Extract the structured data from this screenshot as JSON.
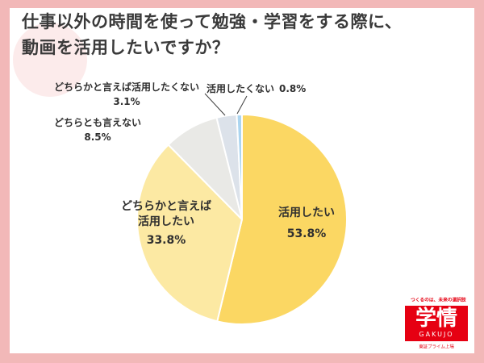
{
  "title": {
    "line1": "仕事以外の時間を使って勉強・学習をする際に、",
    "line2": "動画を活用したいですか？"
  },
  "chart_data": {
    "type": "pie",
    "title": "仕事以外の時間を使って勉強・学習をする際に、動画を活用したいですか？",
    "unit": "%",
    "start_angle_deg": 0,
    "direction": "clockwise",
    "legend_position": "none",
    "slices": [
      {
        "key": "use",
        "label": "活用したい",
        "value": 53.8,
        "pct": "53.8%",
        "color": "#FBD763"
      },
      {
        "key": "somewhat-use",
        "label": "どちらかと言えば活用したい",
        "value": 33.8,
        "pct": "33.8%",
        "color": "#FCE9A3"
      },
      {
        "key": "neutral",
        "label": "どちらとも言えない",
        "value": 8.5,
        "pct": "8.5%",
        "color": "#E9E9E6"
      },
      {
        "key": "somewhat-not-use",
        "label": "どちらかと言えば活用したくない",
        "value": 3.1,
        "pct": "3.1%",
        "color": "#DCE2EA"
      },
      {
        "key": "not-use",
        "label": "活用したくない",
        "value": 0.8,
        "pct": "0.8%",
        "color": "#ABD5F0"
      }
    ]
  },
  "logo": {
    "tagline": "つくるのは、未来の選択肢",
    "name_kanji": "学情",
    "name_en": "GAKUJO",
    "subtext": "東証プライム上場"
  },
  "colors": {
    "background": "#F2B8B8",
    "card": "#FFFFFF",
    "title_text": "#3A3A3A",
    "label_text": "#2F2F2F",
    "logo_red": "#E60012",
    "slice_border": "#FFFFFF"
  }
}
